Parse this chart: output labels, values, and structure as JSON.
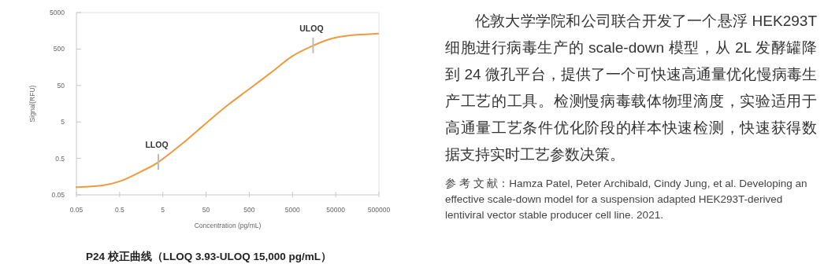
{
  "chart_data": {
    "type": "line",
    "title": "P24 校正曲线（LLOQ 3.93-ULOQ 15,000 pg/mL）",
    "xlabel": "Concentration (pg/mL)",
    "ylabel": "Signal(RFU)",
    "log": "xy",
    "xlim": [
      0.05,
      500000
    ],
    "ylim": [
      0.05,
      5000
    ],
    "xticks": [
      0.05,
      0.5,
      5,
      50,
      500,
      5000,
      50000,
      500000
    ],
    "yticks": [
      0.05,
      0.5,
      5,
      50,
      500,
      5000
    ],
    "x": [
      0.05,
      0.2,
      0.53,
      1.6,
      4.0,
      15,
      51,
      165,
      500,
      1550,
      5000,
      15500,
      38000,
      118000,
      480000
    ],
    "series": [
      {
        "color": "#ee9a3f",
        "values": [
          0.081,
          0.091,
          0.12,
          0.22,
          0.4,
          1.35,
          4.7,
          15,
          40,
          110,
          320,
          630,
          950,
          1200,
          1320
        ]
      }
    ],
    "annotations": [
      {
        "text": "LLOQ",
        "x": 3.93,
        "y": 0.4
      },
      {
        "text": "ULOQ",
        "x": 15000,
        "y": 630
      },
      "伦敦大学学院和公司联合开发了一个悬浮 HEK293T 细胞进行病毒生产的 scale-down 模型，从 2L 发酵罐降到 24 微孔平台，提供了一个可快速高通量优化慢病毒生产工艺的工具。检测慢病毒载体物理滴度，实验适用于高通量工艺条件优化阶段的样本快速检测，快速获得数据支持实时工艺参数决策。",
      "参 考 文 献：Hamza Patel, Peter Archibald, Cindy Jung, et al. Developing an effective scale-down model for a suspension adapted HEK293T-derived lentiviral vector stable producer cell line. 2021."
    ]
  }
}
